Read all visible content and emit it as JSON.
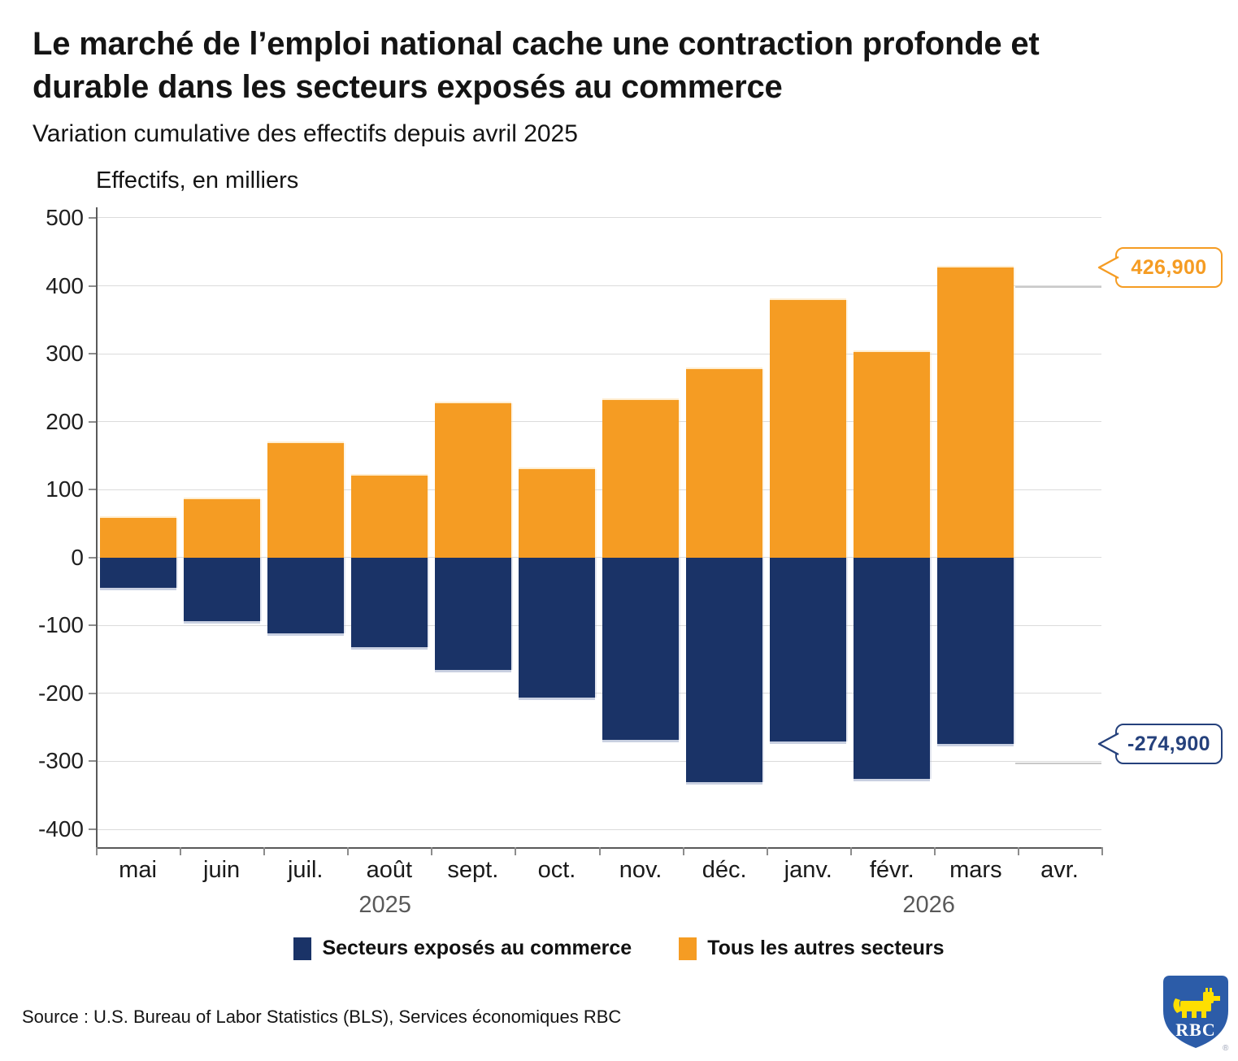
{
  "header": {
    "title_line1": "Le marché de l’emploi national cache une contraction profonde et",
    "title_line2": "durable dans les secteurs exposés au commerce",
    "subtitle": "Variation cumulative des effectifs depuis avril 2025"
  },
  "chart": {
    "y_axis_title": "Effectifs, en milliers"
  },
  "chart_data": {
    "type": "bar",
    "subtype": "stacked-diverging",
    "title": "Le marché de l’emploi national cache une contraction profonde et durable dans les secteurs exposés au commerce",
    "subtitle": "Variation cumulative des effectifs depuis avril 2025",
    "ylabel": "Effectifs, en milliers",
    "unit": "milliers",
    "categories": [
      "mai",
      "juin",
      "juil.",
      "août",
      "sept.",
      "oct.",
      "nov.",
      "déc.",
      "janv.",
      "févr.",
      "mars",
      "avr."
    ],
    "series": [
      {
        "name": "Secteurs exposés au commerce",
        "color": "#1A3367",
        "values": [
          -45,
          -94,
          -111,
          -132,
          -166,
          -206,
          -268,
          -331,
          -271,
          -326,
          -274.9,
          null
        ]
      },
      {
        "name": "Tous les autres secteurs",
        "color": "#F59C23",
        "values": [
          58,
          86,
          168,
          121,
          227,
          130,
          232,
          277,
          379,
          303,
          426.9,
          null
        ]
      }
    ],
    "yticks": [
      500,
      400,
      300,
      200,
      100,
      0,
      -100,
      -200,
      -300,
      -400
    ],
    "ylim": [
      -426,
      516
    ],
    "grid": "horizontal",
    "legend_position": "bottom",
    "years": [
      {
        "label": "2025",
        "month_index": 2.95
      },
      {
        "label": "2026",
        "month_index": 9.44
      }
    ],
    "callouts": [
      {
        "text": "426,900",
        "value": 426.9,
        "color": "#F59C23",
        "series": "Tous les autres secteurs"
      },
      {
        "text": "-274,900",
        "value": -274.9,
        "color": "#25417C",
        "series": "Secteurs exposés au commerce"
      }
    ]
  },
  "legend": {
    "items": [
      {
        "label": "Secteurs exposés au commerce",
        "color": "#1A3367"
      },
      {
        "label": "Tous les autres secteurs",
        "color": "#F59C23"
      }
    ]
  },
  "footer": {
    "source": "Source : U.S. Bureau of Labor Statistics (BLS), Services économiques RBC",
    "logo_text": "RBC",
    "logo_registered": "®"
  }
}
